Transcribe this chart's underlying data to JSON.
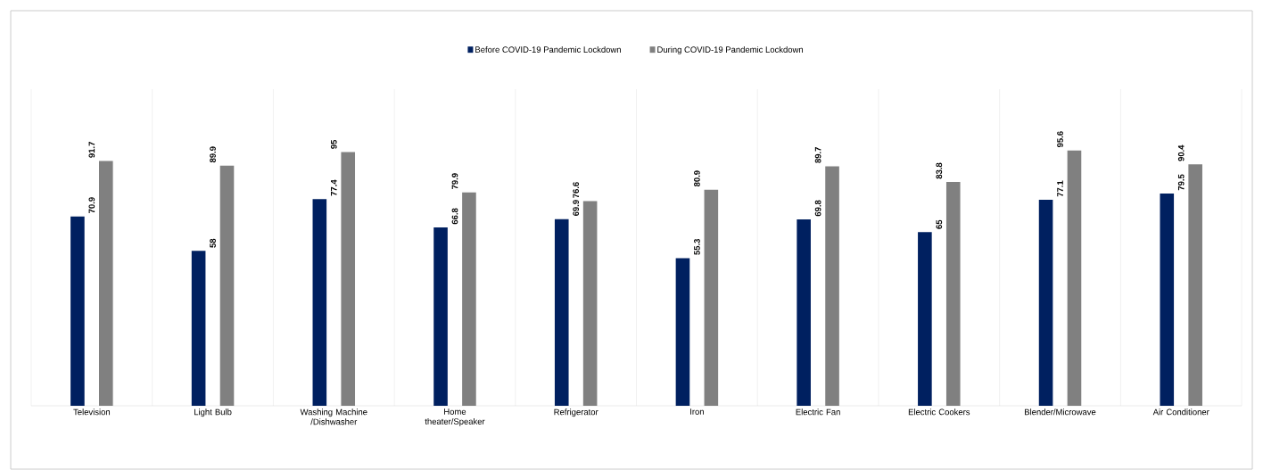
{
  "chart_data": {
    "type": "bar",
    "categories": [
      "Television",
      "Light Bulb",
      "Washing Machine /Dishwasher",
      "Home theater/Speaker",
      "Refrigerator",
      "Iron",
      "Electric Fan",
      "Electric Cookers",
      "Blender/Microwave",
      "Air Conditioner"
    ],
    "series": [
      {
        "name": "Before COVID-19 Pandemic Lockdown",
        "color": "#002060",
        "values": [
          70.9,
          58,
          77.4,
          66.8,
          69.9,
          55.3,
          69.8,
          65,
          77.1,
          79.5
        ]
      },
      {
        "name": "During COVID-19 Pandemic Lockdown",
        "color": "#808080",
        "values": [
          91.7,
          89.9,
          95,
          79.9,
          76.6,
          80.9,
          89.7,
          83.8,
          95.6,
          90.4
        ]
      }
    ],
    "data_labels": true,
    "grid": "x",
    "legend": "top"
  }
}
